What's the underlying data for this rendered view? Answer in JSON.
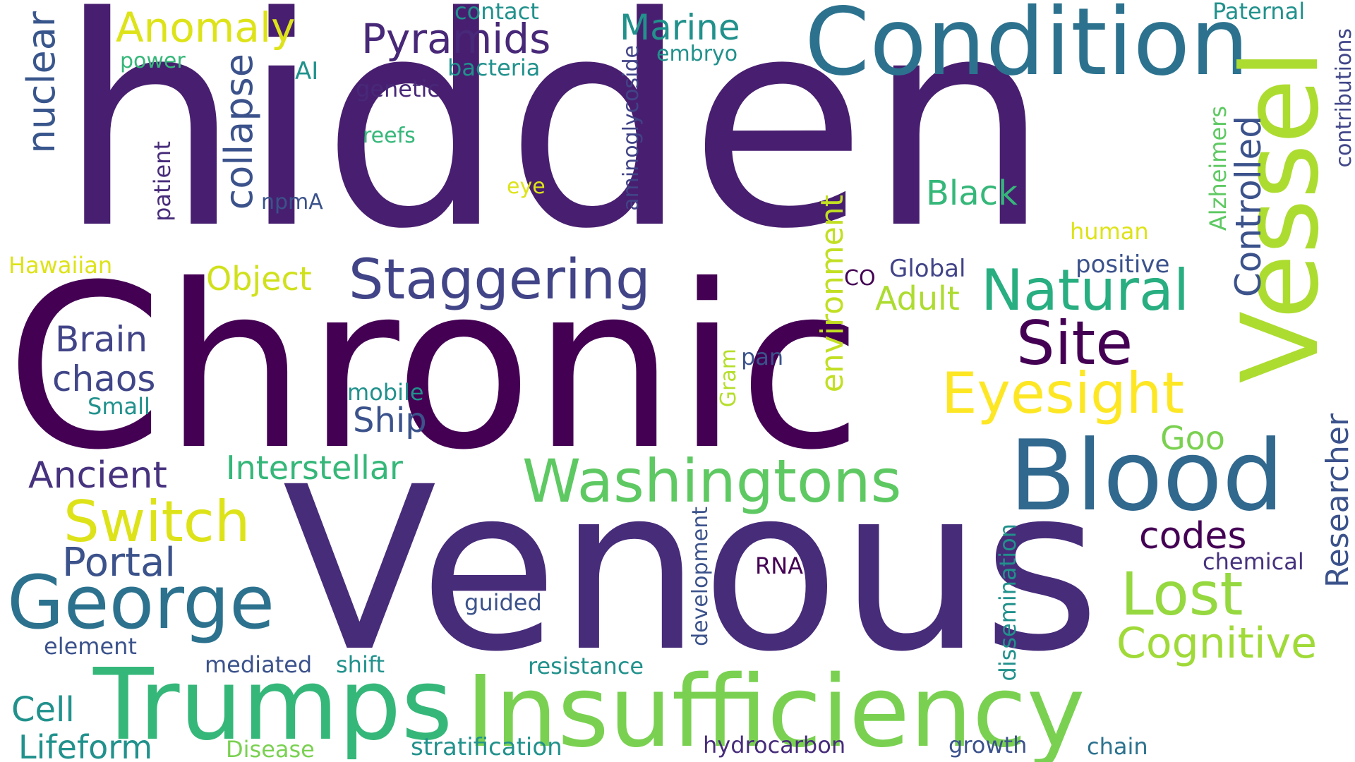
{
  "palette": {
    "deep_purple": "#440154",
    "indigo": "#472c7a",
    "blue_violet": "#3b528b",
    "steel_blue": "#2c728e",
    "teal": "#21918c",
    "green_teal": "#28ae80",
    "green": "#5ec962",
    "lime": "#addc30",
    "yellow": "#fde725"
  },
  "words": {
    "hidden": "hidden",
    "chronic": "Chronic",
    "venous": "Venous",
    "condition": "Condition",
    "vessel": "Vessel",
    "blood": "Blood",
    "insufficiency": "Insufficiency",
    "trumps": "Trumps",
    "george": "George",
    "washingtons": "Washingtons",
    "staggering": "Staggering",
    "natural": "Natural",
    "site": "Site",
    "eyesight": "Eyesight",
    "lost": "Lost",
    "cognitive": "Cognitive",
    "switch": "Switch",
    "pyramids": "Pyramids",
    "anomaly": "Anomaly",
    "marine": "Marine",
    "collapse": "collapse",
    "nuclear": "nuclear",
    "controlled": "Controlled",
    "environment": "environment",
    "researcher": "Researcher",
    "contributions": "contributions",
    "alzheimers": "Alzheimers",
    "aminoglycoside": "aminoglycoside",
    "dissemination": "dissemination",
    "development": "development",
    "gram": "Gram",
    "patient": "patient",
    "paternal": "Paternal",
    "contact": "contact",
    "bacteria": "bacteria",
    "embryo": "embryo",
    "power": "power",
    "ai": "AI",
    "genetic": "genetic",
    "reefs": "reefs",
    "eye": "eye",
    "npma": "npmA",
    "black": "Black",
    "human": "human",
    "hawaiian": "Hawaiian",
    "object": "Object",
    "co": "CO",
    "global": "Global",
    "positive": "positive",
    "adult": "Adult",
    "brain": "Brain",
    "chaos": "chaos",
    "small": "Small",
    "mobile": "mobile",
    "pan": "pan",
    "ship": "Ship",
    "goo": "Goo",
    "ancient": "Ancient",
    "interstellar": "Interstellar",
    "codes": "codes",
    "portal": "Portal",
    "chemical": "chemical",
    "rna": "RNA",
    "guided": "guided",
    "element": "element",
    "mediated": "mediated",
    "shift": "shift",
    "resistance": "resistance",
    "cell": "Cell",
    "lifeform": "Lifeform",
    "disease": "Disease",
    "stratification": "stratification",
    "hydrocarbon": "hydrocarbon",
    "growth": "growth",
    "chain": "chain"
  }
}
